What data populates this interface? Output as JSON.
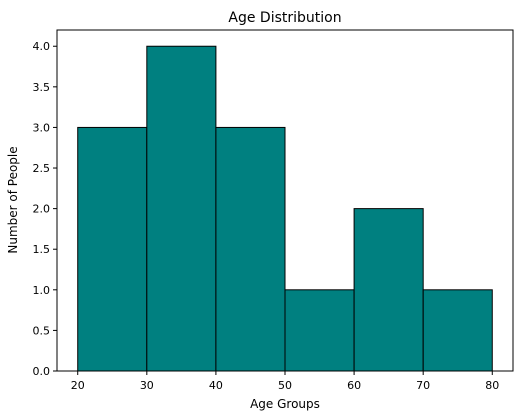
{
  "chart_data": {
    "type": "bar",
    "title": "Age Distribution",
    "xlabel": "Age Groups",
    "ylabel": "Number of People",
    "bins": [
      {
        "start": 20,
        "end": 30,
        "count": 3
      },
      {
        "start": 30,
        "end": 40,
        "count": 4
      },
      {
        "start": 40,
        "end": 50,
        "count": 3
      },
      {
        "start": 50,
        "end": 60,
        "count": 1
      },
      {
        "start": 60,
        "end": 70,
        "count": 2
      },
      {
        "start": 70,
        "end": 80,
        "count": 1
      }
    ],
    "xlim": [
      17,
      83
    ],
    "ylim": [
      0,
      4.2
    ],
    "xticks": [
      20,
      30,
      40,
      50,
      60,
      70,
      80
    ],
    "xtick_labels": [
      "20",
      "30",
      "40",
      "50",
      "60",
      "70",
      "80"
    ],
    "yticks": [
      0,
      0.5,
      1,
      1.5,
      2,
      2.5,
      3,
      3.5,
      4
    ],
    "ytick_labels": [
      "0.0",
      "0.5",
      "1.0",
      "1.5",
      "2.0",
      "2.5",
      "3.0",
      "3.5",
      "4.0"
    ],
    "bar_color": "#008080",
    "edge_color": "#000000",
    "grid": false,
    "legend": false
  }
}
